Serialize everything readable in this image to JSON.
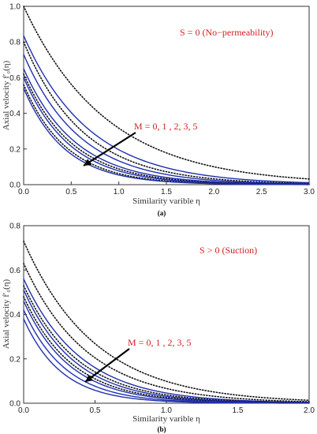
{
  "chart_data": [
    {
      "type": "line",
      "panel_label": "(a)",
      "annotation_top": "S = 0 (No−permeability)",
      "annotation_m": "M = 0, 1 , 2,  3, 5",
      "xlabel": "Similarity varible η",
      "ylabel": "Axial velocity f′₀(η)",
      "xlim": [
        0,
        3.0
      ],
      "ylim": [
        0,
        1.0
      ],
      "xticks": [
        "0.0",
        "0.5",
        "1.0",
        "1.5",
        "2.0",
        "2.5",
        "3.0"
      ],
      "yticks": [
        "0.0",
        "0.2",
        "0.4",
        "0.6",
        "0.8",
        "1.0"
      ],
      "grid": false,
      "colors": {
        "solid": "#1f2fb0",
        "dotted": "#111111",
        "annotation": "#d42020"
      },
      "series": [
        {
          "style": "dotted",
          "x0": 1.0,
          "k": 1.15
        },
        {
          "style": "solid",
          "x0": 0.835,
          "k": 1.45
        },
        {
          "style": "dotted",
          "x0": 0.8,
          "k": 1.6
        },
        {
          "style": "solid",
          "x0": 0.73,
          "k": 1.7
        },
        {
          "style": "solid",
          "x0": 0.65,
          "k": 1.85
        },
        {
          "style": "dotted",
          "x0": 0.62,
          "k": 1.95
        },
        {
          "style": "solid",
          "x0": 0.6,
          "k": 2.05
        },
        {
          "style": "dotted",
          "x0": 0.56,
          "k": 2.2
        },
        {
          "style": "solid",
          "x0": 0.54,
          "k": 2.3
        }
      ]
    },
    {
      "type": "line",
      "panel_label": "(b)",
      "annotation_top": "S > 0 (Suction)",
      "annotation_m": "M = 0, 1 , 2,  3, 5",
      "xlabel": "Similarity varible η",
      "ylabel": "Axial velocity f′₀(η)",
      "xlim": [
        0,
        2.0
      ],
      "ylim": [
        0,
        0.8
      ],
      "xticks": [
        "0.0",
        "0.5",
        "1.0",
        "1.5",
        "2.0"
      ],
      "yticks": [
        "0.0",
        "0.2",
        "0.4",
        "0.6",
        "0.8"
      ],
      "grid": false,
      "colors": {
        "solid": "#1f2fb0",
        "dotted": "#111111",
        "annotation": "#d42020"
      },
      "series": [
        {
          "style": "dotted",
          "x0": 0.73,
          "k": 2.0
        },
        {
          "style": "dotted",
          "x0": 0.63,
          "k": 2.25
        },
        {
          "style": "solid",
          "x0": 0.56,
          "k": 2.5
        },
        {
          "style": "dotted",
          "x0": 0.53,
          "k": 2.65
        },
        {
          "style": "solid",
          "x0": 0.51,
          "k": 2.8
        },
        {
          "style": "dotted",
          "x0": 0.48,
          "k": 2.95
        },
        {
          "style": "solid",
          "x0": 0.46,
          "k": 3.1
        },
        {
          "style": "solid",
          "x0": 0.42,
          "k": 3.4
        },
        {
          "style": "solid",
          "x0": 0.38,
          "k": 3.75
        }
      ]
    }
  ]
}
